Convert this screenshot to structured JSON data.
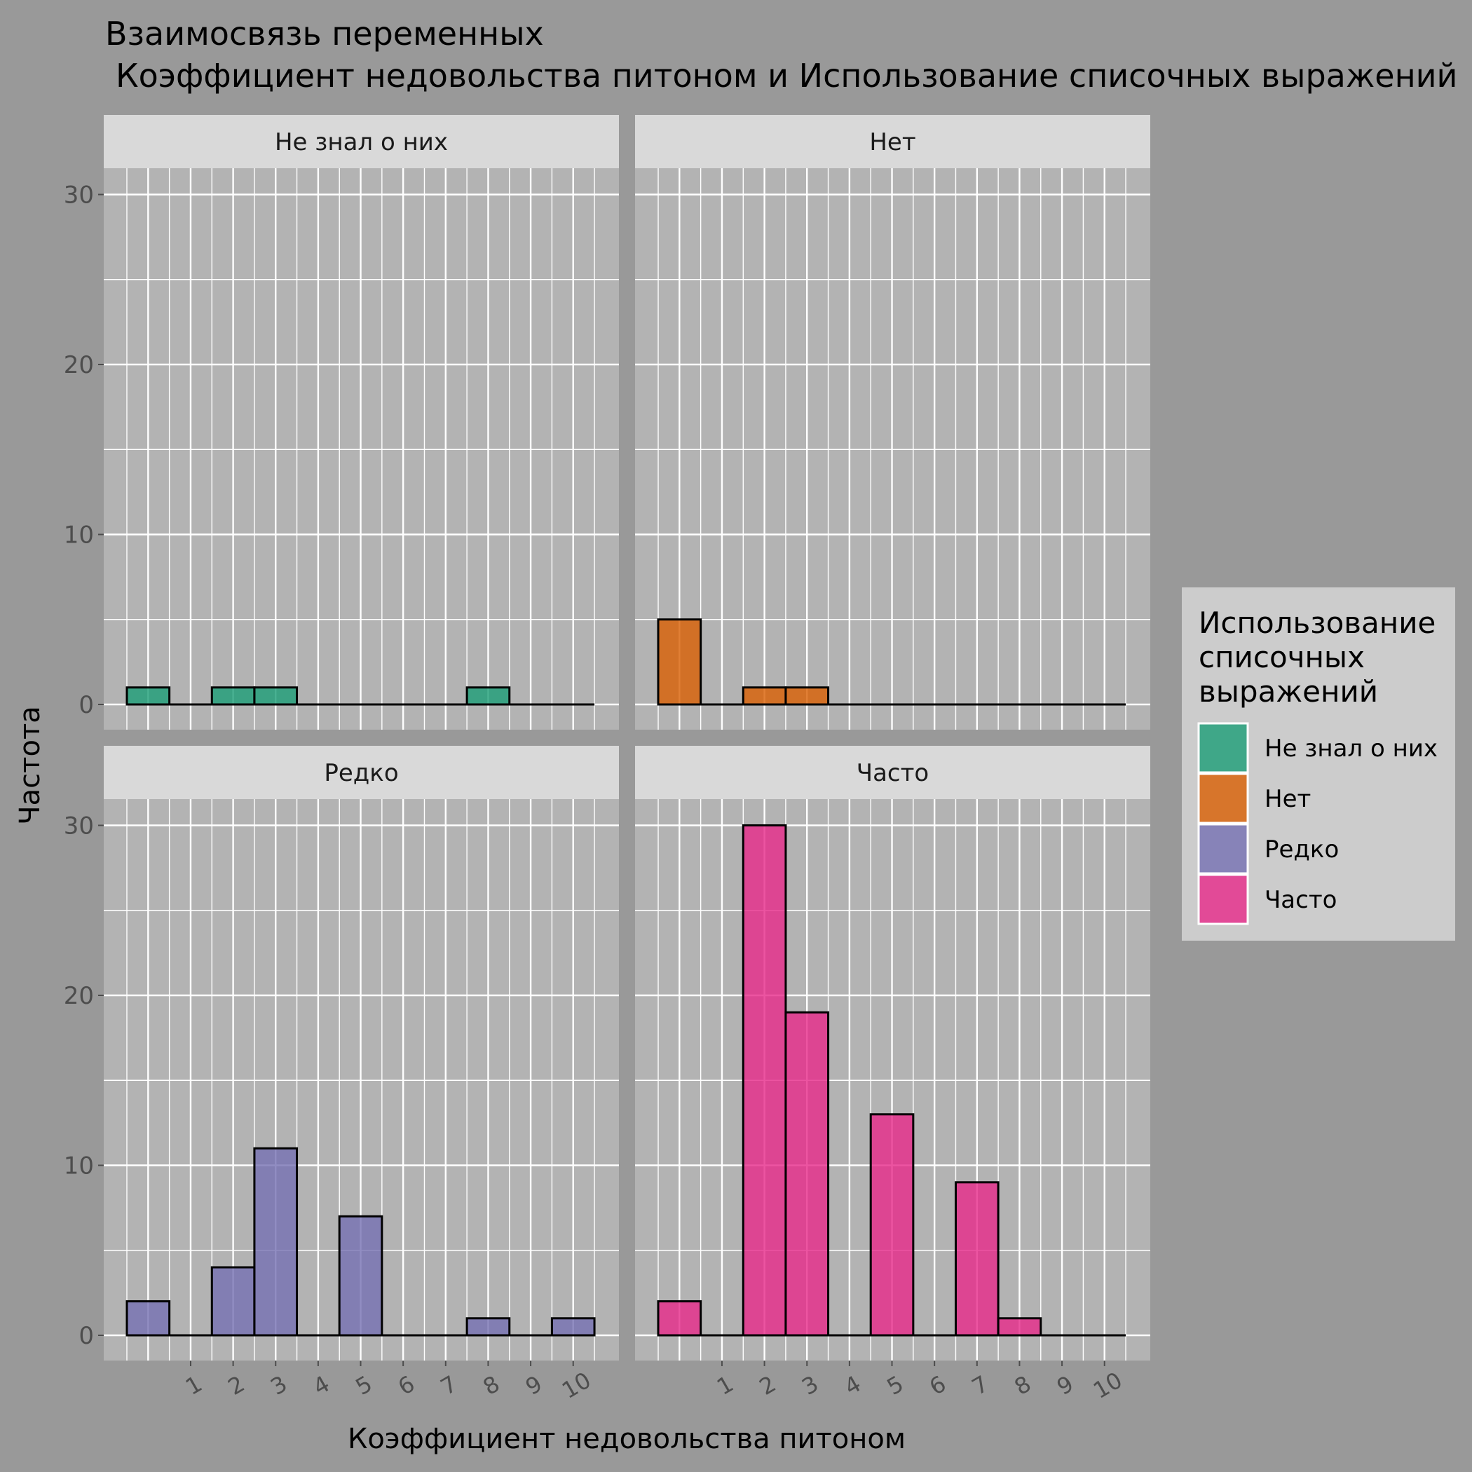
{
  "chart_data": {
    "type": "bar",
    "title_line1": "Взаимосвязь переменных",
    "title_line2": "Коэффициент недовольства питоном и Использование списочных выражений",
    "xlabel": "Коэффициент недовольства питоном",
    "ylabel": "Частота",
    "x_ticks": [
      "1",
      "2",
      "3",
      "4",
      "5",
      "6",
      "7",
      "8",
      "9",
      "10"
    ],
    "y_ticks": [
      "0",
      "10",
      "20",
      "30"
    ],
    "ylim": [
      0,
      30
    ],
    "x": [
      0,
      1,
      2,
      3,
      4,
      5,
      6,
      7,
      8,
      9,
      10
    ],
    "legend": {
      "title_lines": [
        "Использование",
        "списочных",
        "выражений"
      ],
      "placement": "right"
    },
    "grid": true,
    "panels": [
      {
        "name": "Не знал о них",
        "color": "#1B9E77",
        "values": [
          1,
          0,
          1,
          1,
          0,
          0,
          0,
          0,
          1,
          0,
          0
        ]
      },
      {
        "name": "Нет",
        "color": "#D95F02",
        "values": [
          5,
          0,
          1,
          1,
          0,
          0,
          0,
          0,
          0,
          0,
          0
        ]
      },
      {
        "name": "Редко",
        "color": "#7570B3",
        "values": [
          2,
          0,
          4,
          11,
          0,
          7,
          0,
          0,
          1,
          0,
          1
        ]
      },
      {
        "name": "Часто",
        "color": "#E7298A",
        "values": [
          2,
          0,
          30,
          19,
          0,
          13,
          0,
          9,
          1,
          0,
          0
        ]
      }
    ]
  }
}
